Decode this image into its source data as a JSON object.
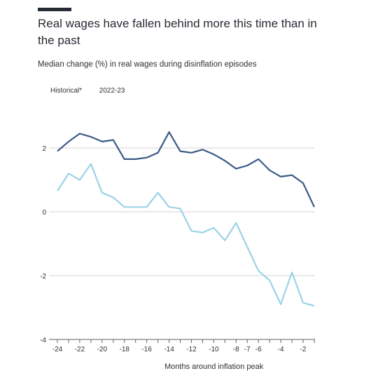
{
  "header": {
    "title": "Real wages have fallen behind more this time than in the past",
    "subtitle": "Median change (%) in real wages during disinflation episodes"
  },
  "legend": {
    "items": [
      {
        "label": "Historical*",
        "color": "#9bd3e6"
      },
      {
        "label": "2022-23",
        "color": "#3a5a85"
      }
    ]
  },
  "axis": {
    "xlabel": "Months around inflation peak"
  },
  "chart_data": {
    "type": "line",
    "title": "Real wages have fallen behind more this time than in the past",
    "subtitle": "Median change (%) in real wages during disinflation episodes",
    "xlabel": "Months around inflation peak",
    "ylabel": "",
    "ylim": [
      -4,
      2.5
    ],
    "xlim": [
      -24,
      -1
    ],
    "yticks": [
      2,
      0,
      -2,
      -4
    ],
    "xticks": [
      -24,
      -22,
      -20,
      -18,
      -16,
      -14,
      -12,
      -10,
      -8,
      -7,
      -6,
      -4,
      -2
    ],
    "x": [
      -24,
      -23,
      -22,
      -21,
      -20,
      -19,
      -18,
      -17,
      -16,
      -15,
      -14,
      -13,
      -12,
      -11,
      -10,
      -9,
      -8,
      -7,
      -6,
      -5,
      -4,
      -3,
      -2,
      -1
    ],
    "series": [
      {
        "name": "2022-23",
        "color": "#3a5a85",
        "values": [
          1.9,
          2.2,
          2.45,
          2.35,
          2.2,
          2.25,
          1.65,
          1.65,
          1.7,
          1.85,
          2.5,
          1.9,
          1.85,
          1.95,
          1.8,
          1.6,
          1.35,
          1.45,
          1.65,
          1.3,
          1.1,
          1.15,
          0.9,
          0.15
        ]
      },
      {
        "name": "Historical*",
        "color": "#9bd3e6",
        "values": [
          0.65,
          1.2,
          1.0,
          1.5,
          0.6,
          0.45,
          0.15,
          0.15,
          0.15,
          0.6,
          0.15,
          0.1,
          -0.6,
          -0.65,
          -0.5,
          -0.9,
          -0.35,
          -1.1,
          -1.85,
          -2.15,
          -2.9,
          -1.9,
          -2.85,
          -2.95
        ]
      }
    ],
    "grid": true
  }
}
